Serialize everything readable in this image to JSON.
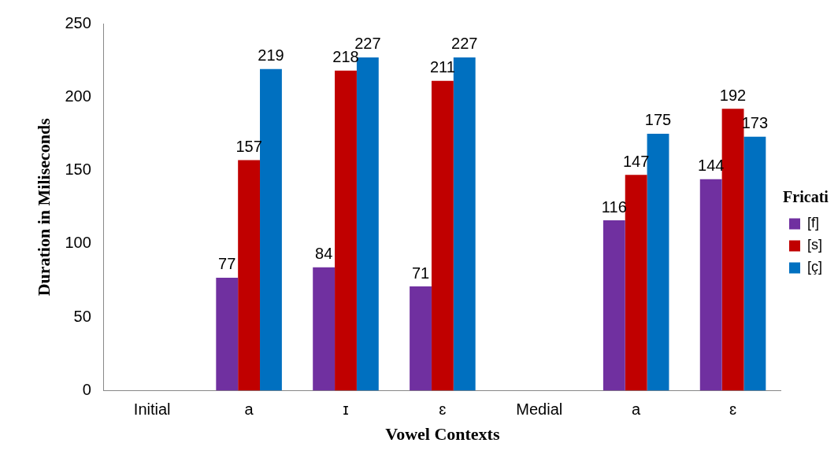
{
  "chart_data": {
    "type": "bar",
    "xlabel": "Vowel Contexts",
    "ylabel": "Duration in Miliseconds",
    "legend_title": "Fricati",
    "categories": [
      "Initial",
      "a",
      "ɪ",
      "ɛ",
      "Medial",
      "a",
      "ɛ"
    ],
    "series": [
      {
        "name": "[f]",
        "color": "#7030a0",
        "values": [
          null,
          77,
          84,
          71,
          null,
          116,
          144
        ]
      },
      {
        "name": "[s]",
        "color": "#c00000",
        "values": [
          null,
          157,
          218,
          211,
          null,
          147,
          192
        ]
      },
      {
        "name": "[ç]",
        "color": "#0070c0",
        "values": [
          null,
          219,
          227,
          227,
          null,
          175,
          173
        ]
      }
    ],
    "ylim": [
      0,
      250
    ],
    "yticks": [
      0,
      50,
      100,
      150,
      200,
      250
    ],
    "grid": false,
    "legend": "right",
    "data_labels": true
  }
}
